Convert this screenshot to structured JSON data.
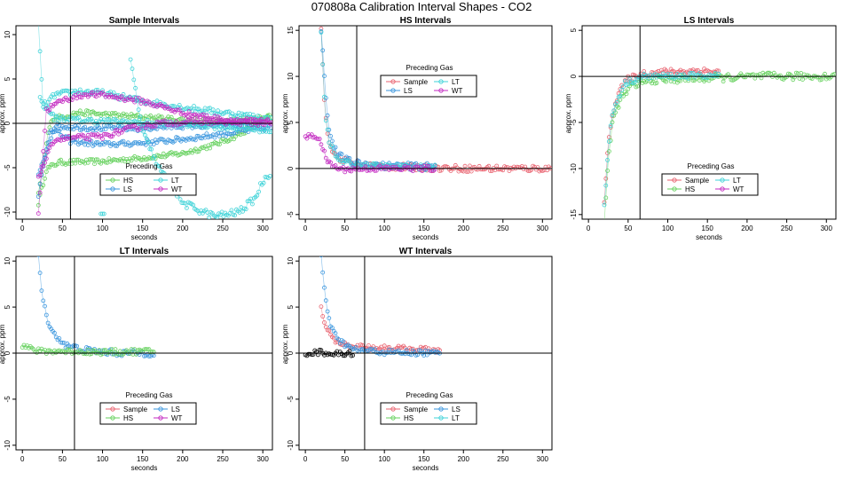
{
  "suptitle": "070808a   Calibration Interval Shapes - CO2",
  "colors": {
    "Sample": "#e8626f",
    "HS": "#66d15e",
    "LS": "#3a96de",
    "LT": "#3fd3d8",
    "WT": "#c32ac1",
    "none": "#000000"
  },
  "chart_data": [
    {
      "type": "scatter",
      "title": "Sample Intervals",
      "xlabel": "seconds",
      "ylabel": "approx. ppm",
      "xlim": [
        -8,
        312
      ],
      "ylim": [
        -10.8,
        11
      ],
      "xticks": [
        0,
        50,
        100,
        150,
        200,
        250,
        300
      ],
      "yticks": [
        -10,
        -5,
        0,
        5,
        10
      ],
      "vline": 60,
      "hline": 0,
      "legend": {
        "title": "Preceding Gas",
        "entries": [
          "HS",
          "LT",
          "LS",
          "WT"
        ]
      },
      "series": [
        {
          "name": "HS",
          "start": 20,
          "end": 310,
          "anchors": [
            [
              20,
              -9
            ],
            [
              30,
              -5.2
            ],
            [
              45,
              -4.4
            ],
            [
              100,
              -4.3
            ],
            [
              150,
              -3.9
            ],
            [
              200,
              -3.4
            ],
            [
              240,
              -2.4
            ],
            [
              270,
              -1.3
            ],
            [
              300,
              0.4
            ],
            [
              310,
              0.8
            ]
          ],
          "amp": 0.28
        },
        {
          "name": "HS",
          "start": 20,
          "end": 310,
          "anchors": [
            [
              20,
              -8
            ],
            [
              35,
              0.4
            ],
            [
              70,
              1.2
            ],
            [
              120,
              0.9
            ],
            [
              180,
              0.5
            ],
            [
              240,
              0.2
            ],
            [
              300,
              0.6
            ],
            [
              310,
              0.8
            ]
          ],
          "amp": 0.3
        },
        {
          "name": "LS",
          "start": 20,
          "end": 310,
          "anchors": [
            [
              20,
              -8
            ],
            [
              35,
              -0.5
            ],
            [
              60,
              -2.0
            ],
            [
              100,
              -2.4
            ],
            [
              150,
              -2.2
            ],
            [
              200,
              -1.8
            ],
            [
              250,
              -1.2
            ],
            [
              300,
              -0.6
            ],
            [
              310,
              -0.4
            ]
          ],
          "amp": 0.3
        },
        {
          "name": "LS",
          "start": 20,
          "end": 300,
          "anchors": [
            [
              20,
              -6
            ],
            [
              40,
              -0.3
            ],
            [
              80,
              -0.5
            ],
            [
              140,
              -0.6
            ],
            [
              200,
              -0.3
            ],
            [
              260,
              -0.2
            ],
            [
              300,
              0
            ]
          ],
          "amp": 0.3
        },
        {
          "name": "LT",
          "start": 20,
          "end": 310,
          "anchors": [
            [
              20,
              11
            ],
            [
              22,
              8.3
            ],
            [
              26,
              1.5
            ],
            [
              40,
              3.2
            ],
            [
              70,
              3.6
            ],
            [
              100,
              3.4
            ],
            [
              150,
              2.5
            ],
            [
              200,
              1.8
            ],
            [
              250,
              1.2
            ],
            [
              300,
              0.6
            ],
            [
              310,
              0.4
            ]
          ],
          "amp": 0.35
        },
        {
          "name": "LT",
          "start": 22,
          "end": 310,
          "anchors": [
            [
              22,
              3
            ],
            [
              40,
              0.6
            ],
            [
              80,
              0.3
            ],
            [
              150,
              0.1
            ],
            [
              220,
              -0.2
            ],
            [
              280,
              -0.6
            ],
            [
              310,
              -0.8
            ]
          ],
          "amp": 0.3
        },
        {
          "name": "WT",
          "start": 20,
          "end": 310,
          "anchors": [
            [
              20,
              -10
            ],
            [
              30,
              1.5
            ],
            [
              50,
              2.6
            ],
            [
              80,
              3.3
            ],
            [
              100,
              3.2
            ],
            [
              150,
              2.5
            ],
            [
              200,
              1.2
            ],
            [
              250,
              0.4
            ],
            [
              300,
              0.2
            ],
            [
              310,
              0.1
            ]
          ],
          "amp": 0.3
        },
        {
          "name": "WT",
          "start": 20,
          "end": 310,
          "anchors": [
            [
              20,
              -6
            ],
            [
              40,
              -1.8
            ],
            [
              70,
              -1.6
            ],
            [
              100,
              -1.5
            ],
            [
              130,
              -0.7
            ],
            [
              170,
              0
            ],
            [
              220,
              0.2
            ],
            [
              270,
              0.1
            ],
            [
              310,
              0
            ]
          ],
          "amp": 0.3
        },
        {
          "name": "LT",
          "start": 135,
          "end": 310,
          "anchors": [
            [
              135,
              7
            ],
            [
              150,
              -1
            ],
            [
              170,
              -5
            ],
            [
              200,
              -9
            ],
            [
              240,
              -10.5
            ],
            [
              270,
              -10
            ],
            [
              290,
              -8.5
            ],
            [
              300,
              -6.5
            ],
            [
              310,
              -5.5
            ]
          ],
          "amp": 0.4
        },
        {
          "name": "LT",
          "start": 98,
          "end": 102,
          "anchors": [
            [
              98,
              -10.2
            ],
            [
              102,
              -10.2
            ]
          ],
          "amp": 0
        }
      ]
    },
    {
      "type": "scatter",
      "title": "HS Intervals",
      "xlabel": "seconds",
      "ylabel": "approx. ppm",
      "xlim": [
        -8,
        312
      ],
      "ylim": [
        -5.5,
        15.5
      ],
      "xticks": [
        0,
        50,
        100,
        150,
        200,
        250,
        300
      ],
      "yticks": [
        -5,
        0,
        5,
        10,
        15
      ],
      "vline": 65,
      "hline": 0,
      "legend": {
        "title": "Preceding Gas",
        "entries": [
          "Sample",
          "LT",
          "LS",
          "WT"
        ]
      },
      "series": [
        {
          "name": "Sample",
          "start": 20,
          "end": 310,
          "anchors": [
            [
              20,
              15
            ],
            [
              25,
              6
            ],
            [
              30,
              2.5
            ],
            [
              40,
              1.2
            ],
            [
              60,
              0.5
            ],
            [
              100,
              0.2
            ],
            [
              150,
              0.1
            ],
            [
              200,
              0
            ],
            [
              260,
              0
            ],
            [
              310,
              0
            ]
          ],
          "amp": 0.35
        },
        {
          "name": "LS",
          "start": 20,
          "end": 165,
          "anchors": [
            [
              20,
              15
            ],
            [
              25,
              9
            ],
            [
              30,
              4
            ],
            [
              40,
              1.5
            ],
            [
              60,
              0.6
            ],
            [
              100,
              0.3
            ],
            [
              165,
              0.2
            ]
          ],
          "amp": 0.35
        },
        {
          "name": "LT",
          "start": 20,
          "end": 165,
          "anchors": [
            [
              20,
              15
            ],
            [
              25,
              6
            ],
            [
              30,
              3
            ],
            [
              40,
              1
            ],
            [
              60,
              0.4
            ],
            [
              100,
              0.2
            ],
            [
              165,
              0.1
            ]
          ],
          "amp": 0.3
        },
        {
          "name": "WT",
          "start": 0,
          "end": 165,
          "anchors": [
            [
              0,
              3.5
            ],
            [
              18,
              3.4
            ],
            [
              22,
              2
            ],
            [
              30,
              0.5
            ],
            [
              45,
              -0.1
            ],
            [
              80,
              0
            ],
            [
              165,
              0
            ]
          ],
          "amp": 0.3
        }
      ]
    },
    {
      "type": "scatter",
      "title": "LS Intervals",
      "xlabel": "seconds",
      "ylabel": "approx. ppm",
      "xlim": [
        -8,
        312
      ],
      "ylim": [
        -15.5,
        5.5
      ],
      "xticks": [
        0,
        50,
        100,
        150,
        200,
        250,
        300
      ],
      "yticks": [
        -15,
        -10,
        -5,
        0,
        5
      ],
      "vline": 65,
      "hline": 0,
      "legend": {
        "title": "Preceding Gas",
        "entries": [
          "Sample",
          "LT",
          "HS",
          "WT"
        ]
      },
      "series": [
        {
          "name": "Sample",
          "start": 20,
          "end": 165,
          "anchors": [
            [
              20,
              -14
            ],
            [
              25,
              -7
            ],
            [
              30,
              -4
            ],
            [
              40,
              -1.5
            ],
            [
              50,
              -0.3
            ],
            [
              70,
              0.3
            ],
            [
              100,
              0.5
            ],
            [
              140,
              0.6
            ],
            [
              165,
              0.5
            ]
          ],
          "amp": 0.35
        },
        {
          "name": "HS",
          "start": 20,
          "end": 310,
          "anchors": [
            [
              20,
              -16
            ],
            [
              25,
              -9
            ],
            [
              30,
              -5
            ],
            [
              40,
              -2.5
            ],
            [
              55,
              -1
            ],
            [
              80,
              -0.4
            ],
            [
              150,
              -0.2
            ],
            [
              220,
              0
            ],
            [
              310,
              0
            ]
          ],
          "amp": 0.4
        },
        {
          "name": "LT",
          "start": 20,
          "end": 165,
          "anchors": [
            [
              20,
              -14
            ],
            [
              25,
              -8
            ],
            [
              30,
              -4
            ],
            [
              45,
              -0.8
            ],
            [
              70,
              0
            ],
            [
              165,
              0.1
            ]
          ],
          "amp": 0.3
        }
      ]
    },
    {
      "type": "scatter",
      "title": "LT Intervals",
      "xlabel": "seconds",
      "ylabel": "approx. ppm",
      "xlim": [
        -8,
        312
      ],
      "ylim": [
        -10.5,
        10.5
      ],
      "xticks": [
        0,
        50,
        100,
        150,
        200,
        250,
        300
      ],
      "yticks": [
        -10,
        -5,
        0,
        5,
        10
      ],
      "vline": 65,
      "hline": 0,
      "legend": {
        "title": "Preceding Gas",
        "entries": [
          "Sample",
          "LS",
          "HS",
          "WT"
        ]
      },
      "series": [
        {
          "name": "LS",
          "start": 20,
          "end": 165,
          "anchors": [
            [
              20,
              10.5
            ],
            [
              25,
              6
            ],
            [
              30,
              4
            ],
            [
              40,
              2
            ],
            [
              55,
              0.8
            ],
            [
              80,
              0.3
            ],
            [
              120,
              0
            ],
            [
              165,
              0
            ]
          ],
          "amp": 0.35
        },
        {
          "name": "HS",
          "start": 0,
          "end": 165,
          "anchors": [
            [
              0,
              0.8
            ],
            [
              20,
              0.2
            ],
            [
              60,
              0.2
            ],
            [
              100,
              0.1
            ],
            [
              165,
              0.2
            ]
          ],
          "amp": 0.3
        }
      ]
    },
    {
      "type": "scatter",
      "title": "WT Intervals",
      "xlabel": "seconds",
      "ylabel": "approx. ppm",
      "xlim": [
        -8,
        312
      ],
      "ylim": [
        -10.5,
        10.5
      ],
      "xticks": [
        0,
        50,
        100,
        150,
        200,
        250,
        300
      ],
      "yticks": [
        -10,
        -5,
        0,
        5,
        10
      ],
      "vline": 75,
      "hline": 0,
      "legend": {
        "title": "Preceding Gas",
        "entries": [
          "Sample",
          "LS",
          "HS",
          "LT"
        ]
      },
      "series": [
        {
          "name": "Sample",
          "start": 20,
          "end": 170,
          "anchors": [
            [
              20,
              5
            ],
            [
              25,
              3
            ],
            [
              35,
              1.5
            ],
            [
              50,
              0.9
            ],
            [
              80,
              0.6
            ],
            [
              120,
              0.5
            ],
            [
              170,
              0.3
            ]
          ],
          "amp": 0.3
        },
        {
          "name": "LS",
          "start": 20,
          "end": 170,
          "anchors": [
            [
              20,
              10.5
            ],
            [
              25,
              6
            ],
            [
              30,
              3.5
            ],
            [
              40,
              1.5
            ],
            [
              60,
              0.4
            ],
            [
              100,
              0.1
            ],
            [
              170,
              0
            ]
          ],
          "amp": 0.3
        },
        {
          "name": "none",
          "start": 0,
          "end": 60,
          "anchors": [
            [
              0,
              0
            ],
            [
              20,
              0.1
            ],
            [
              40,
              -0.1
            ],
            [
              60,
              0
            ]
          ],
          "amp": 0.3
        }
      ]
    }
  ]
}
